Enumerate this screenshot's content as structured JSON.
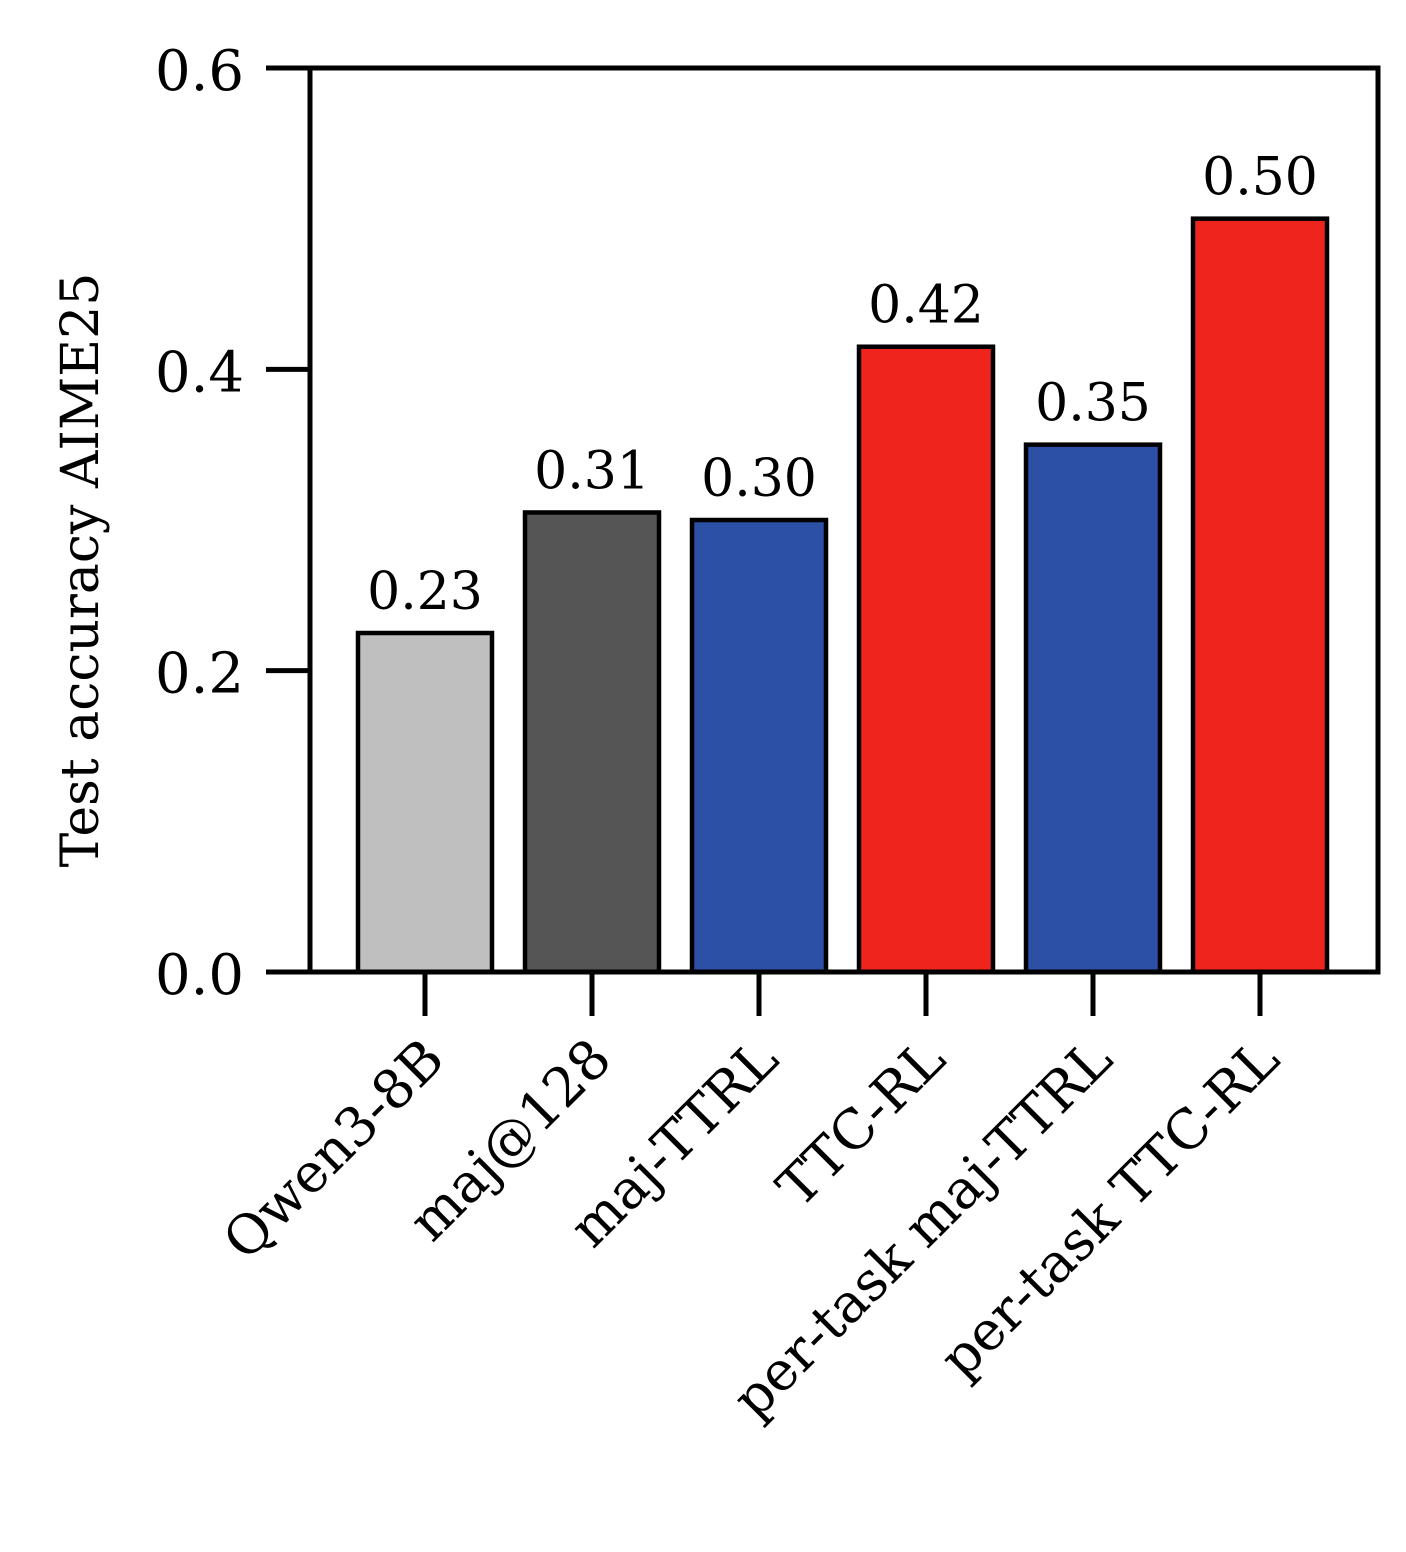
{
  "chart_data": {
    "type": "bar",
    "categories": [
      "Qwen3-8B",
      "maj@128",
      "maj-TTRL",
      "TTC-RL",
      "per-task maj-TTRL",
      "per-task TTC-RL"
    ],
    "values": [
      0.225,
      0.305,
      0.3,
      0.415,
      0.35,
      0.5
    ],
    "data_labels": [
      "0.23",
      "0.31",
      "0.30",
      "0.42",
      "0.35",
      "0.50"
    ],
    "bar_colors": [
      "#bfbfbf",
      "#555555",
      "#2c50a5",
      "#ee241d",
      "#2c50a5",
      "#ee241d"
    ],
    "ylabel": "Test accuracy AIME25",
    "xlabel": "",
    "ylim": [
      0,
      0.6
    ],
    "yticks": [
      0.0,
      0.2,
      0.4,
      0.6
    ],
    "ytick_labels": [
      "0.0",
      "0.2",
      "0.4",
      "0.6"
    ],
    "grid": false,
    "legend": null
  }
}
